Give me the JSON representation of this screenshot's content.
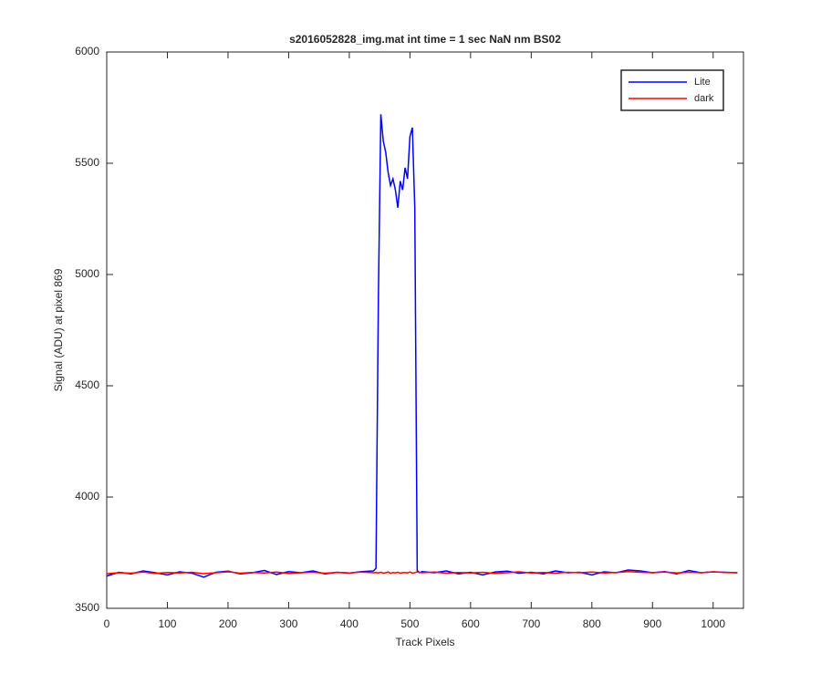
{
  "chart_data": {
    "type": "line",
    "title": "s2016052828_img.mat int time = 1 sec  NaN nm BS02",
    "x_label": "Track Pixels",
    "y_label": "Signal (ADU) at pixel 869",
    "xlim": [
      0,
      1050
    ],
    "ylim": [
      3500,
      6000
    ],
    "xticks": [
      0,
      100,
      200,
      300,
      400,
      500,
      600,
      700,
      800,
      900,
      1000
    ],
    "yticks": [
      3500,
      4000,
      4500,
      5000,
      5500,
      6000
    ],
    "legend_position": "upper right",
    "x": [
      0,
      20,
      40,
      60,
      80,
      100,
      120,
      140,
      160,
      180,
      200,
      220,
      240,
      260,
      280,
      300,
      320,
      340,
      360,
      380,
      400,
      420,
      440,
      444,
      448,
      452,
      456,
      460,
      464,
      468,
      472,
      476,
      480,
      484,
      488,
      492,
      496,
      500,
      504,
      508,
      512,
      516,
      520,
      540,
      560,
      580,
      600,
      620,
      640,
      660,
      680,
      700,
      720,
      740,
      760,
      780,
      800,
      820,
      840,
      860,
      880,
      900,
      920,
      940,
      960,
      980,
      1000,
      1020,
      1040
    ],
    "series": [
      {
        "name": "Lite",
        "color": "#0000ff",
        "values": [
          3645,
          3662,
          3655,
          3668,
          3660,
          3650,
          3664,
          3658,
          3640,
          3662,
          3667,
          3655,
          3660,
          3670,
          3652,
          3665,
          3660,
          3668,
          3655,
          3662,
          3658,
          3665,
          3668,
          3680,
          4900,
          5720,
          5600,
          5550,
          5460,
          5400,
          5430,
          5380,
          5300,
          5420,
          5380,
          5480,
          5430,
          5620,
          5660,
          5300,
          3670,
          3660,
          3665,
          3660,
          3668,
          3655,
          3662,
          3650,
          3663,
          3667,
          3658,
          3662,
          3655,
          3668,
          3660,
          3662,
          3650,
          3664,
          3660,
          3672,
          3668,
          3660,
          3665,
          3655,
          3670,
          3660,
          3664,
          3662,
          3660
        ]
      },
      {
        "name": "dark",
        "color": "#ff0000",
        "values": [
          3655,
          3660,
          3658,
          3663,
          3657,
          3661,
          3659,
          3662,
          3656,
          3660,
          3664,
          3658,
          3661,
          3659,
          3663,
          3657,
          3660,
          3662,
          3658,
          3661,
          3659,
          3663,
          3660,
          3661,
          3659,
          3662,
          3658,
          3660,
          3663,
          3657,
          3661,
          3659,
          3662,
          3658,
          3660,
          3661,
          3659,
          3663,
          3658,
          3660,
          3664,
          3662,
          3660,
          3663,
          3658,
          3661,
          3659,
          3662,
          3657,
          3660,
          3664,
          3659,
          3661,
          3658,
          3662,
          3660,
          3663,
          3659,
          3661,
          3665,
          3662,
          3660,
          3663,
          3659,
          3662,
          3660,
          3664,
          3661,
          3660
        ]
      }
    ]
  }
}
